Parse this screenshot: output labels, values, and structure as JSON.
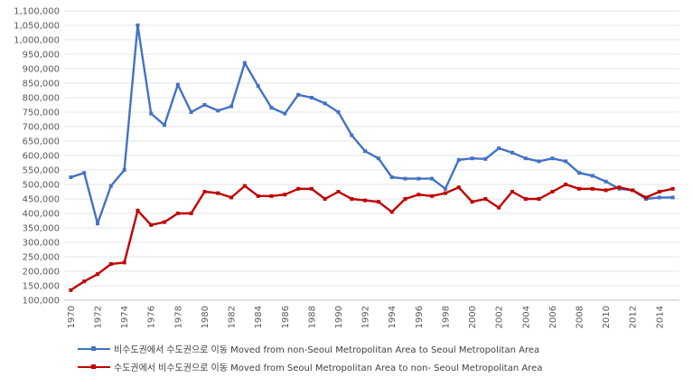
{
  "chart_data": {
    "type": "line",
    "title": "",
    "xlabel": "",
    "ylabel": "",
    "x": [
      1970,
      1971,
      1972,
      1973,
      1974,
      1975,
      1976,
      1977,
      1978,
      1979,
      1980,
      1981,
      1982,
      1983,
      1984,
      1985,
      1986,
      1987,
      1988,
      1989,
      1990,
      1991,
      1992,
      1993,
      1994,
      1995,
      1996,
      1997,
      1998,
      1999,
      2000,
      2001,
      2002,
      2003,
      2004,
      2005,
      2006,
      2007,
      2008,
      2009,
      2010,
      2011,
      2012,
      2013,
      2014,
      2015
    ],
    "x_tick_labels": [
      "1970",
      "1972",
      "1974",
      "1976",
      "1978",
      "1980",
      "1982",
      "1984",
      "1986",
      "1988",
      "1990",
      "1992",
      "1994",
      "1996",
      "1998",
      "2000",
      "2002",
      "2004",
      "2006",
      "2008",
      "2010",
      "2012",
      "2014"
    ],
    "y_tick_labels": [
      "100,000",
      "150,000",
      "200,000",
      "250,000",
      "300,000",
      "350,000",
      "400,000",
      "450,000",
      "500,000",
      "550,000",
      "600,000",
      "650,000",
      "700,000",
      "750,000",
      "800,000",
      "850,000",
      "900,000",
      "950,000",
      "1,000,000",
      "1,050,000",
      "1,100,000"
    ],
    "ylim": [
      100000,
      1100000
    ],
    "grid": true,
    "legend_position": "bottom",
    "series": [
      {
        "name": "비수도권에서 수도권으로 이동  Moved from non-Seoul Metropolitan Area to Seoul Metropolitan Area",
        "color": "#4472C4",
        "values": [
          525000,
          540000,
          365000,
          495000,
          550000,
          1050000,
          745000,
          705000,
          845000,
          750000,
          775000,
          755000,
          770000,
          920000,
          840000,
          765000,
          745000,
          810000,
          800000,
          780000,
          750000,
          670000,
          615000,
          590000,
          525000,
          520000,
          520000,
          520000,
          485000,
          585000,
          590000,
          588000,
          625000,
          610000,
          590000,
          580000,
          590000,
          580000,
          540000,
          530000,
          510000,
          485000,
          480000,
          450000,
          455000,
          455000
        ]
      },
      {
        "name": "수도권에서 비수도권으로 이동  Moved from Seoul Metropolitan Area to non- Seoul Metropolitan Area",
        "color": "#C00000",
        "values": [
          135000,
          165000,
          190000,
          225000,
          230000,
          410000,
          360000,
          370000,
          400000,
          400000,
          475000,
          470000,
          455000,
          495000,
          460000,
          460000,
          465000,
          485000,
          485000,
          450000,
          475000,
          450000,
          445000,
          440000,
          405000,
          450000,
          465000,
          460000,
          470000,
          490000,
          440000,
          450000,
          420000,
          475000,
          450000,
          450000,
          475000,
          500000,
          485000,
          485000,
          480000,
          490000,
          480000,
          455000,
          475000,
          485000
        ]
      }
    ]
  }
}
